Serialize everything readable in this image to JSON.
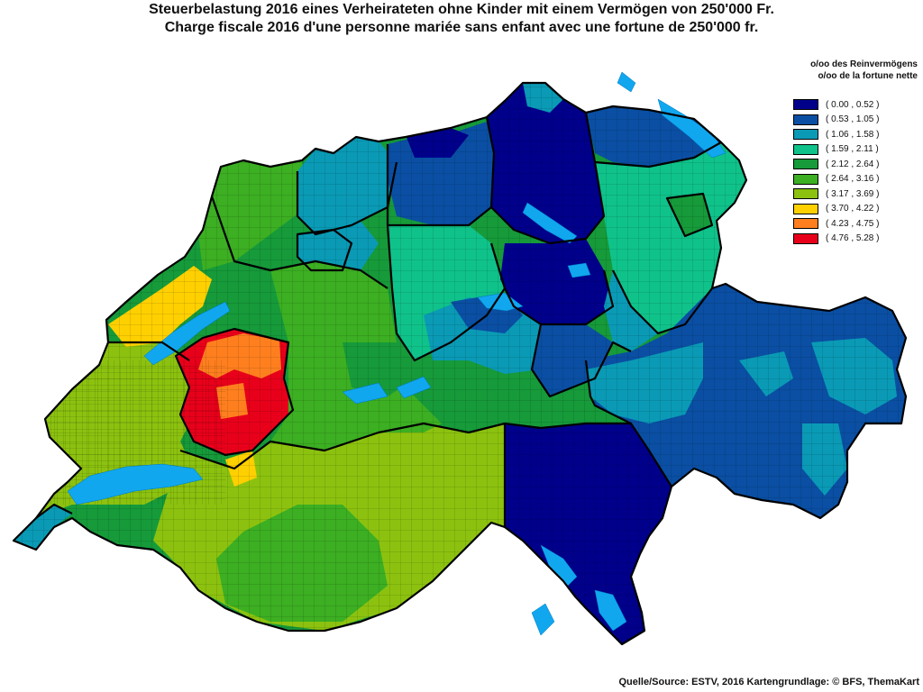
{
  "title": {
    "de": "Steuerbelastung 2016 eines Verheirateten ohne Kinder mit einem Vermögen von 250'000 Fr.",
    "fr": "Charge fiscale 2016 d'une personne mariée sans enfant avec une fortune de 250'000 fr."
  },
  "legend": {
    "heading_de": "o/oo des Reinvermögens",
    "heading_fr": "o/oo de la fortune nette",
    "classes": [
      {
        "label": "( 0.00 , 0.52 )",
        "color": "#00008b"
      },
      {
        "label": "( 0.53 , 1.05 )",
        "color": "#0a4fa3"
      },
      {
        "label": "( 1.06 , 1.58 )",
        "color": "#0a9ab5"
      },
      {
        "label": "( 1.59 , 2.11 )",
        "color": "#0fc28a"
      },
      {
        "label": "( 2.12 , 2.64 )",
        "color": "#169a3a"
      },
      {
        "label": "( 2.64 , 3.16 )",
        "color": "#3caf22"
      },
      {
        "label": "( 3.17 , 3.69 )",
        "color": "#8cc20f"
      },
      {
        "label": "( 3.70 , 4.22 )",
        "color": "#ffd000"
      },
      {
        "label": "( 4.23 , 4.75 )",
        "color": "#ff7f1e"
      },
      {
        "label": "( 4.76 , 5.28 )",
        "color": "#e8001a"
      }
    ]
  },
  "lake_color": "#10a7ef",
  "source": "Quelle/Source: ESTV, 2016 Kartengrundlage: © BFS, ThemaKart"
}
